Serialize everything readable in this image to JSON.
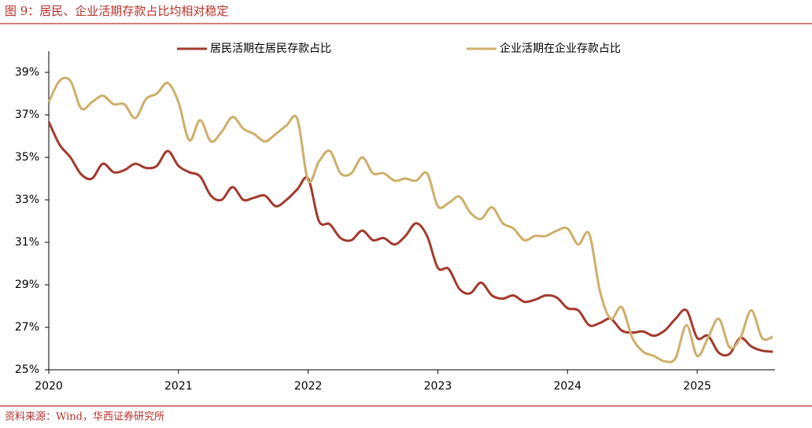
{
  "chart_data": {
    "type": "line",
    "title": "图 9：居民、企业活期存款占比均相对稳定",
    "source": "资料来源：Wind，华西证券研究所",
    "x": [
      2020,
      2020.083,
      2020.167,
      2020.25,
      2020.333,
      2020.417,
      2020.5,
      2020.583,
      2020.667,
      2020.75,
      2020.833,
      2020.917,
      2021,
      2021.083,
      2021.167,
      2021.25,
      2021.333,
      2021.417,
      2021.5,
      2021.583,
      2021.667,
      2021.75,
      2021.833,
      2021.917,
      2022,
      2022.083,
      2022.167,
      2022.25,
      2022.333,
      2022.417,
      2022.5,
      2022.583,
      2022.667,
      2022.75,
      2022.833,
      2022.917,
      2023,
      2023.083,
      2023.167,
      2023.25,
      2023.333,
      2023.417,
      2023.5,
      2023.583,
      2023.667,
      2023.75,
      2023.833,
      2023.917,
      2024,
      2024.083,
      2024.167,
      2024.25,
      2024.333,
      2024.417,
      2024.5,
      2024.583,
      2024.667,
      2024.75,
      2024.833,
      2024.917,
      2025,
      2025.083,
      2025.167,
      2025.25,
      2025.333,
      2025.417,
      2025.5,
      2025.583
    ],
    "series": [
      {
        "name": "居民活期在居民存款占比",
        "color": "#a33a2e",
        "values": [
          36.67,
          35.6,
          35.0,
          34.2,
          34.0,
          34.7,
          34.3,
          34.4,
          34.7,
          34.5,
          34.6,
          35.3,
          34.6,
          34.3,
          34.1,
          33.2,
          33.0,
          33.6,
          33.0,
          33.1,
          33.2,
          32.7,
          33.0,
          33.5,
          34.0,
          32.0,
          31.85,
          31.2,
          31.1,
          31.55,
          31.1,
          31.2,
          30.9,
          31.3,
          31.9,
          31.3,
          29.8,
          29.75,
          28.8,
          28.6,
          29.1,
          28.5,
          28.35,
          28.5,
          28.2,
          28.3,
          28.5,
          28.4,
          27.9,
          27.8,
          27.1,
          27.2,
          27.4,
          26.85,
          26.75,
          26.8,
          26.6,
          26.85,
          27.4,
          27.8,
          26.5,
          26.6,
          25.8,
          25.75,
          26.5,
          26.1,
          25.9,
          25.85
        ]
      },
      {
        "name": "企业活期在企业存款占比",
        "color": "#cfae6a",
        "values": [
          37.6,
          38.6,
          38.6,
          37.3,
          37.6,
          37.9,
          37.5,
          37.5,
          36.85,
          37.75,
          38.0,
          38.5,
          37.6,
          35.8,
          36.75,
          35.75,
          36.2,
          36.9,
          36.35,
          36.1,
          35.75,
          36.1,
          36.5,
          36.8,
          33.9,
          34.8,
          35.3,
          34.25,
          34.25,
          35.0,
          34.25,
          34.25,
          33.9,
          34.0,
          33.9,
          34.25,
          32.7,
          32.85,
          33.15,
          32.4,
          32.1,
          32.65,
          31.9,
          31.65,
          31.1,
          31.3,
          31.3,
          31.55,
          31.65,
          30.9,
          31.4,
          28.7,
          27.4,
          27.95,
          26.5,
          25.85,
          25.65,
          25.4,
          25.55,
          27.1,
          25.65,
          26.5,
          27.4,
          26.05,
          26.5,
          27.8,
          26.5,
          26.55
        ]
      }
    ],
    "xlim": [
      2020,
      2025.6
    ],
    "xticks": [
      2020,
      2021,
      2022,
      2023,
      2024,
      2025
    ],
    "ylim": [
      25,
      40
    ],
    "yticks": [
      {
        "value": 25,
        "label": "25%"
      },
      {
        "value": 27,
        "label": "27%"
      },
      {
        "value": 29,
        "label": "29%"
      },
      {
        "value": 31,
        "label": "31%"
      },
      {
        "value": 33,
        "label": "33%"
      },
      {
        "value": 35,
        "label": "35%"
      },
      {
        "value": 37,
        "label": "37%"
      },
      {
        "value": 39,
        "label": "39%"
      }
    ],
    "grid": false,
    "legend": "top"
  }
}
